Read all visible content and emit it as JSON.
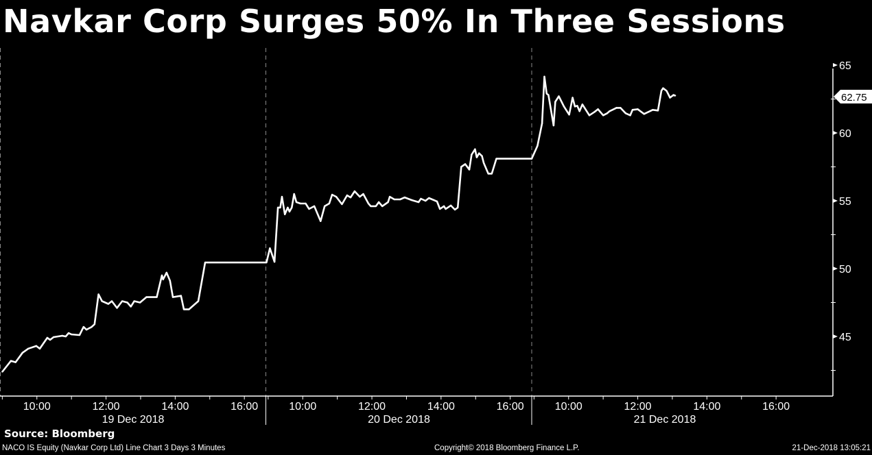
{
  "title": "Navkar Corp Surges 50% In Three Sessions",
  "source": "Source: Bloomberg",
  "footer": {
    "left": "NACO IS Equity (Navkar Corp Ltd) Line Chart 3 Days 3 Minutes",
    "middle": "Copyright© 2018 Bloomberg Finance L.P.",
    "right": "21-Dec-2018 13:05:21"
  },
  "colors": {
    "background": "#000000",
    "line": "#ffffff",
    "separator": "#8a8a8a"
  },
  "chart_data": {
    "type": "line",
    "title": "Navkar Corp Surges 50% In Three Sessions",
    "xlabel": "",
    "ylabel": "",
    "ylim": [
      40.6,
      65.5
    ],
    "y_ticks": [
      45,
      50,
      55,
      60,
      65
    ],
    "y_axis_position": "right",
    "grid": false,
    "last_price": {
      "value": 62.75,
      "label": "62.75"
    },
    "sessions": [
      {
        "date_label": "19 Dec 2018",
        "time_ticks": [
          "10:00",
          "12:00",
          "14:00",
          "16:00"
        ],
        "points": [
          [
            "09:00",
            42.4
          ],
          [
            "09:15",
            43.2
          ],
          [
            "09:23",
            43.1
          ],
          [
            "09:35",
            43.8
          ],
          [
            "09:45",
            44.1
          ],
          [
            "09:59",
            44.3
          ],
          [
            "10:05",
            44.1
          ],
          [
            "10:18",
            44.9
          ],
          [
            "10:23",
            44.75
          ],
          [
            "10:29",
            44.95
          ],
          [
            "10:44",
            45.05
          ],
          [
            "10:50",
            45.0
          ],
          [
            "10:55",
            45.25
          ],
          [
            "11:00",
            45.15
          ],
          [
            "11:14",
            45.1
          ],
          [
            "11:21",
            45.7
          ],
          [
            "11:26",
            45.5
          ],
          [
            "11:35",
            45.7
          ],
          [
            "11:40",
            45.9
          ],
          [
            "11:47",
            48.1
          ],
          [
            "11:53",
            47.6
          ],
          [
            "12:04",
            47.4
          ],
          [
            "12:10",
            47.6
          ],
          [
            "12:19",
            47.1
          ],
          [
            "12:28",
            47.6
          ],
          [
            "12:37",
            47.5
          ],
          [
            "12:43",
            47.2
          ],
          [
            "12:49",
            47.6
          ],
          [
            "12:59",
            47.5
          ],
          [
            "13:10",
            47.9
          ],
          [
            "13:28",
            47.9
          ],
          [
            "13:37",
            49.5
          ],
          [
            "13:39",
            49.2
          ],
          [
            "13:45",
            49.7
          ],
          [
            "13:51",
            49.1
          ],
          [
            "13:56",
            47.9
          ],
          [
            "14:10",
            48.0
          ],
          [
            "14:15",
            47.0
          ],
          [
            "14:24",
            47.0
          ],
          [
            "14:40",
            47.6
          ],
          [
            "14:52",
            50.45
          ]
        ]
      },
      {
        "date_label": "20 Dec 2018",
        "time_ticks": [
          "10:00",
          "12:00",
          "14:00",
          "16:00"
        ],
        "points": [
          [
            "09:03",
            51.5
          ],
          [
            "09:11",
            50.5
          ],
          [
            "09:17",
            54.5
          ],
          [
            "09:21",
            54.5
          ],
          [
            "09:24",
            55.3
          ],
          [
            "09:29",
            54.0
          ],
          [
            "09:34",
            54.5
          ],
          [
            "09:37",
            54.2
          ],
          [
            "09:41",
            54.5
          ],
          [
            "09:45",
            55.5
          ],
          [
            "09:49",
            54.9
          ],
          [
            "09:56",
            54.8
          ],
          [
            "10:05",
            54.8
          ],
          [
            "10:11",
            54.4
          ],
          [
            "10:20",
            54.6
          ],
          [
            "10:31",
            53.5
          ],
          [
            "10:38",
            54.6
          ],
          [
            "10:46",
            54.8
          ],
          [
            "10:51",
            55.45
          ],
          [
            "10:58",
            55.3
          ],
          [
            "11:08",
            54.75
          ],
          [
            "11:17",
            55.4
          ],
          [
            "11:23",
            55.25
          ],
          [
            "11:30",
            55.7
          ],
          [
            "11:39",
            55.3
          ],
          [
            "11:45",
            55.5
          ],
          [
            "11:54",
            54.8
          ],
          [
            "11:58",
            54.6
          ],
          [
            "12:07",
            54.6
          ],
          [
            "12:12",
            54.9
          ],
          [
            "12:18",
            54.6
          ],
          [
            "12:28",
            54.9
          ],
          [
            "12:31",
            55.3
          ],
          [
            "12:39",
            55.1
          ],
          [
            "12:49",
            55.1
          ],
          [
            "12:57",
            55.25
          ],
          [
            "13:09",
            55.05
          ],
          [
            "13:21",
            54.9
          ],
          [
            "13:25",
            55.15
          ],
          [
            "13:33",
            55.0
          ],
          [
            "13:39",
            55.2
          ],
          [
            "13:53",
            54.95
          ],
          [
            "13:58",
            54.4
          ],
          [
            "14:05",
            54.6
          ],
          [
            "14:08",
            54.4
          ],
          [
            "14:17",
            54.65
          ],
          [
            "14:24",
            54.35
          ],
          [
            "14:29",
            54.5
          ],
          [
            "14:35",
            57.5
          ],
          [
            "14:42",
            57.7
          ],
          [
            "14:49",
            57.3
          ],
          [
            "14:53",
            58.4
          ],
          [
            "14:59",
            58.8
          ],
          [
            "15:02",
            58.2
          ],
          [
            "15:06",
            58.5
          ],
          [
            "15:11",
            58.3
          ],
          [
            "15:14",
            57.8
          ],
          [
            "15:22",
            57.0
          ],
          [
            "15:28",
            57.0
          ],
          [
            "15:36",
            58.1
          ]
        ]
      },
      {
        "date_label": "21 Dec 2018",
        "time_ticks": [
          "10:00",
          "12:00",
          "14:00",
          "16:00"
        ],
        "points": [
          [
            "08:56",
            58.1
          ],
          [
            "09:06",
            59.05
          ],
          [
            "09:14",
            60.7
          ],
          [
            "09:18",
            64.15
          ],
          [
            "09:22",
            62.9
          ],
          [
            "09:25",
            62.8
          ],
          [
            "09:34",
            60.55
          ],
          [
            "09:37",
            62.3
          ],
          [
            "09:43",
            62.7
          ],
          [
            "09:52",
            61.95
          ],
          [
            "10:01",
            61.35
          ],
          [
            "10:07",
            62.6
          ],
          [
            "10:11",
            61.95
          ],
          [
            "10:15",
            62.0
          ],
          [
            "10:19",
            61.6
          ],
          [
            "10:24",
            62.1
          ],
          [
            "10:36",
            61.3
          ],
          [
            "10:45",
            61.55
          ],
          [
            "10:51",
            61.75
          ],
          [
            "11:00",
            61.3
          ],
          [
            "11:07",
            61.45
          ],
          [
            "11:11",
            61.6
          ],
          [
            "11:23",
            61.85
          ],
          [
            "11:30",
            61.85
          ],
          [
            "11:39",
            61.45
          ],
          [
            "11:47",
            61.3
          ],
          [
            "11:51",
            61.7
          ],
          [
            "12:00",
            61.75
          ],
          [
            "12:11",
            61.4
          ],
          [
            "12:26",
            61.7
          ],
          [
            "12:35",
            61.65
          ],
          [
            "12:41",
            63.1
          ],
          [
            "12:44",
            63.3
          ],
          [
            "12:50",
            63.1
          ],
          [
            "12:56",
            62.6
          ],
          [
            "13:02",
            62.8
          ],
          [
            "13:05",
            62.75
          ]
        ]
      }
    ]
  }
}
